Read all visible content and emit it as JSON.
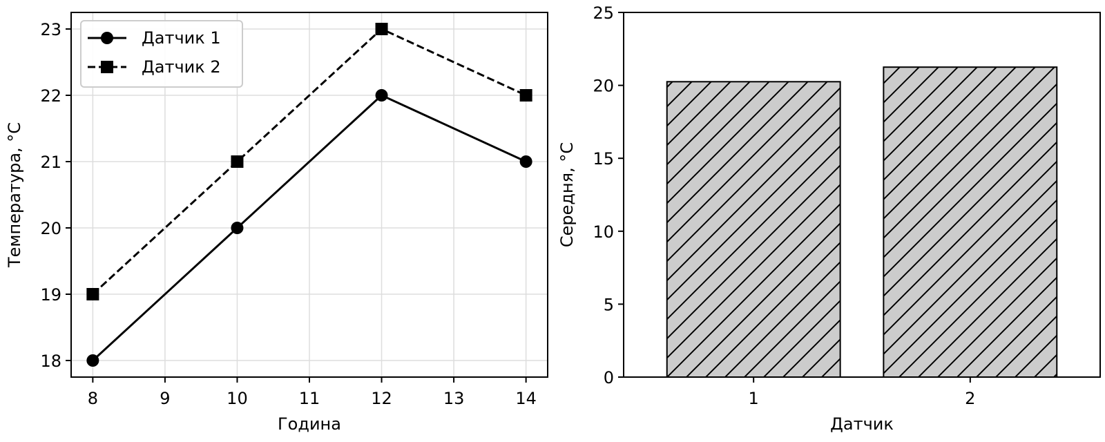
{
  "chart_data": [
    {
      "type": "line",
      "title": "",
      "xlabel": "Година",
      "ylabel": "Температура, °C",
      "x": [
        8,
        10,
        12,
        14
      ],
      "xticks": [
        "8",
        "9",
        "10",
        "11",
        "12",
        "13",
        "14"
      ],
      "xlim": [
        7.7,
        14.3
      ],
      "yticks": [
        "18",
        "19",
        "20",
        "21",
        "22",
        "23"
      ],
      "ylim": [
        17.75,
        23.25
      ],
      "grid": true,
      "legend_position": "top-left",
      "series": [
        {
          "name": "Датчик 1",
          "values": [
            18,
            20,
            22,
            21
          ],
          "marker": "circle",
          "line_style": "solid",
          "color": "#000000"
        },
        {
          "name": "Датчик 2",
          "values": [
            19,
            21,
            23,
            22
          ],
          "marker": "square",
          "line_style": "dashed",
          "color": "#000000"
        }
      ]
    },
    {
      "type": "bar",
      "title": "",
      "xlabel": "Датчик",
      "ylabel": "Середня, °C",
      "categories": [
        "1",
        "2"
      ],
      "values": [
        20.25,
        21.25
      ],
      "yticks": [
        "0",
        "5",
        "10",
        "15",
        "20",
        "25"
      ],
      "ylim": [
        0,
        25
      ],
      "grid": false,
      "bar_color": "#cccccc",
      "edge_color": "#000000",
      "hatch": "diagonal"
    }
  ]
}
